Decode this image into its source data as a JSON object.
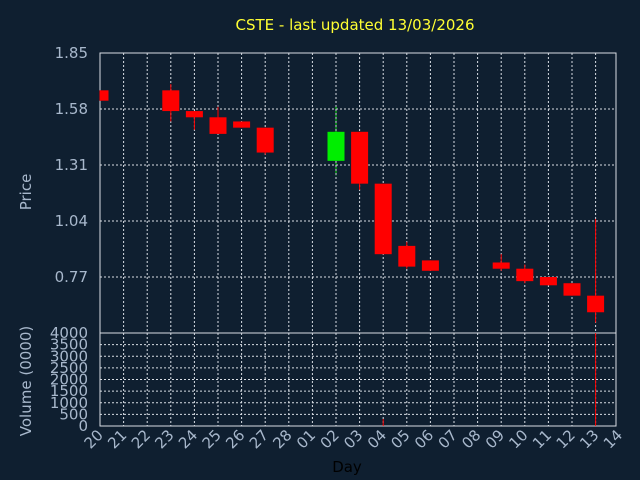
{
  "chart_data": [
    {
      "type": "candlestick",
      "title": "CSTE - last updated 13/03/2026",
      "ylabel": "Price",
      "ylim": [
        0.5,
        1.85
      ],
      "yticks": [
        "1.85",
        "1.58",
        "1.31",
        "1.04",
        "0.77"
      ],
      "ytick_values": [
        1.85,
        1.58,
        1.31,
        1.04,
        0.77
      ],
      "grid": true,
      "up_color": "#00ee00",
      "down_color": "#ff0000",
      "candles": [
        {
          "date": "20",
          "open": 1.67,
          "high": 1.67,
          "low": 1.62,
          "close": 1.62
        },
        {
          "date": "23",
          "open": 1.67,
          "high": 1.7,
          "low": 1.52,
          "close": 1.57
        },
        {
          "date": "24",
          "open": 1.57,
          "high": 1.57,
          "low": 1.48,
          "close": 1.54
        },
        {
          "date": "25",
          "open": 1.54,
          "high": 1.59,
          "low": 1.46,
          "close": 1.46
        },
        {
          "date": "26",
          "open": 1.52,
          "high": 1.52,
          "low": 1.49,
          "close": 1.49
        },
        {
          "date": "27",
          "open": 1.49,
          "high": 1.49,
          "low": 1.36,
          "close": 1.37
        },
        {
          "date": "02",
          "open": 1.33,
          "high": 1.59,
          "low": 1.26,
          "close": 1.47
        },
        {
          "date": "03",
          "open": 1.47,
          "high": 1.47,
          "low": 1.19,
          "close": 1.22
        },
        {
          "date": "04",
          "open": 1.22,
          "high": 1.22,
          "low": 0.88,
          "close": 0.88
        },
        {
          "date": "05",
          "open": 0.92,
          "high": 0.94,
          "low": 0.81,
          "close": 0.82
        },
        {
          "date": "06",
          "open": 0.85,
          "high": 0.85,
          "low": 0.8,
          "close": 0.8
        },
        {
          "date": "09",
          "open": 0.84,
          "high": 0.88,
          "low": 0.8,
          "close": 0.81
        },
        {
          "date": "10",
          "open": 0.81,
          "high": 0.83,
          "low": 0.74,
          "close": 0.75
        },
        {
          "date": "11",
          "open": 0.77,
          "high": 0.77,
          "low": 0.73,
          "close": 0.73
        },
        {
          "date": "12",
          "open": 0.74,
          "high": 0.74,
          "low": 0.68,
          "close": 0.68
        },
        {
          "date": "13",
          "open": 0.68,
          "high": 1.05,
          "low": 0.55,
          "close": 0.6
        }
      ]
    },
    {
      "type": "bar",
      "ylabel": "Volume (0000)",
      "ylim": [
        0,
        4000
      ],
      "yticks": [
        "4000",
        "3500",
        "3000",
        "2500",
        "2000",
        "1500",
        "1000",
        "500",
        "0"
      ],
      "ytick_values": [
        4000,
        3500,
        3000,
        2500,
        2000,
        1500,
        1000,
        500,
        0
      ],
      "xlabel": "Day",
      "categories": [
        "20",
        "21",
        "22",
        "23",
        "24",
        "25",
        "26",
        "27",
        "28",
        "01",
        "02",
        "03",
        "04",
        "05",
        "06",
        "07",
        "08",
        "09",
        "10",
        "11",
        "12",
        "13",
        "14"
      ],
      "volumes": [
        {
          "date": "04",
          "value": 300
        },
        {
          "date": "13",
          "value": 4000
        }
      ]
    }
  ]
}
